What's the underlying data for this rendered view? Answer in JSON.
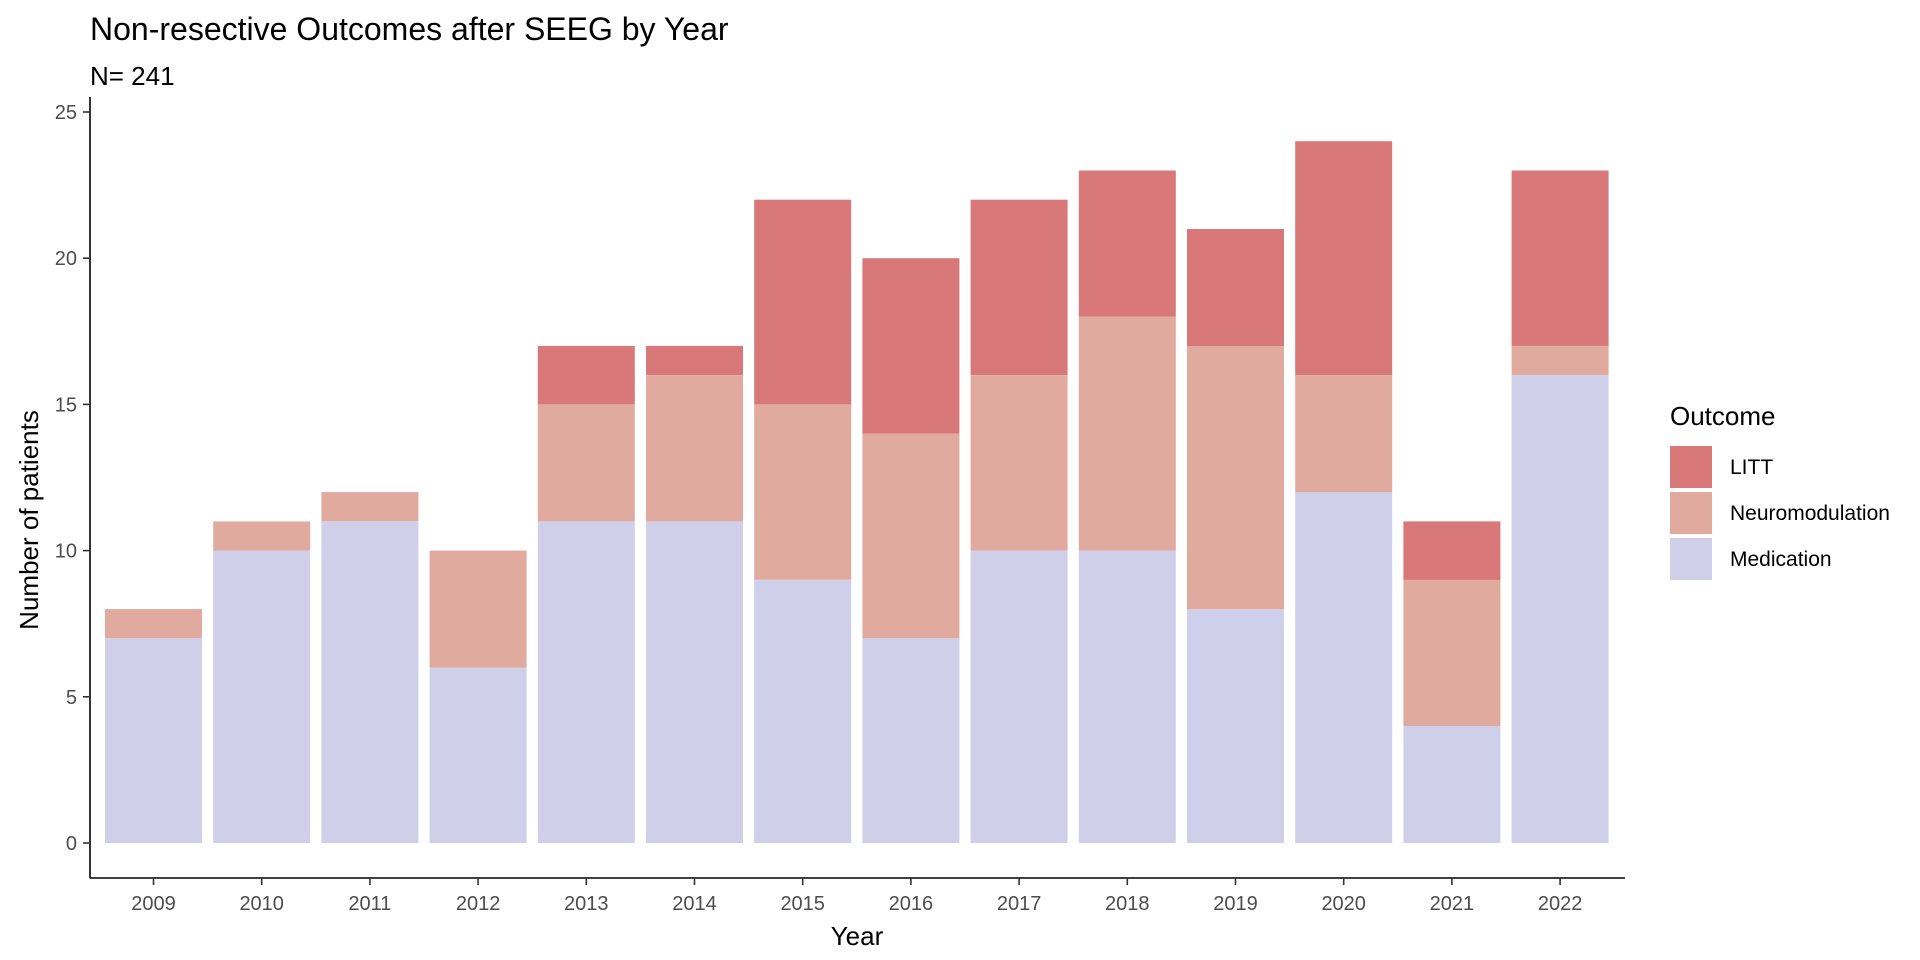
{
  "chart_data": {
    "type": "bar",
    "stacked": true,
    "title": "Non-resective Outcomes after SEEG by Year",
    "subtitle": "N= 241",
    "xlabel": "Year",
    "ylabel": "Number of patients",
    "ylim": [
      0,
      25
    ],
    "yticks": [
      0,
      5,
      10,
      15,
      20,
      25
    ],
    "grid": false,
    "categories": [
      "2009",
      "2010",
      "2011",
      "2012",
      "2013",
      "2014",
      "2015",
      "2016",
      "2017",
      "2018",
      "2019",
      "2020",
      "2021",
      "2022"
    ],
    "series": [
      {
        "name": "Medication",
        "color": "#d0cfea",
        "values": [
          7,
          10,
          11,
          6,
          11,
          11,
          9,
          7,
          10,
          10,
          8,
          12,
          4,
          16
        ]
      },
      {
        "name": "Neuromodulation",
        "color": "#e1aa9f",
        "values": [
          1,
          1,
          1,
          4,
          4,
          5,
          6,
          7,
          6,
          8,
          9,
          4,
          5,
          1
        ]
      },
      {
        "name": "LITT",
        "color": "#d87878",
        "values": [
          0,
          0,
          0,
          0,
          2,
          1,
          7,
          6,
          6,
          5,
          4,
          8,
          2,
          6
        ]
      }
    ],
    "legend": {
      "title": "Outcome",
      "position": "right",
      "entries": [
        "LITT",
        "Neuromodulation",
        "Medication"
      ]
    }
  }
}
